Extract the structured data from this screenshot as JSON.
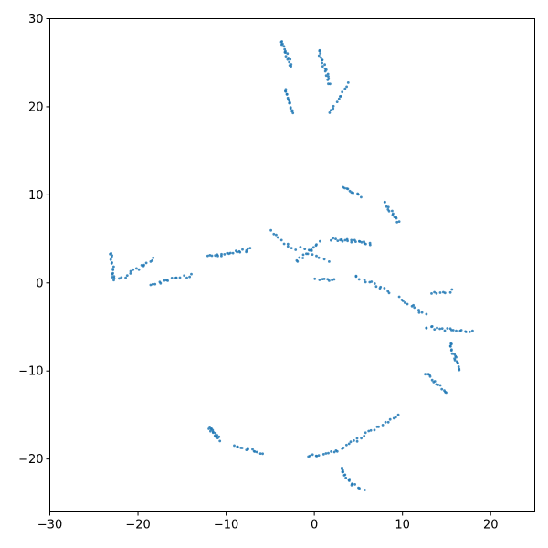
{
  "chart_data": {
    "type": "scatter",
    "title": "",
    "xlabel": "",
    "ylabel": "",
    "xlim": [
      -30,
      25
    ],
    "ylim": [
      -26,
      30
    ],
    "grid": false,
    "marker_color": "#1f77b4",
    "x_ticks": [
      -30,
      -20,
      -10,
      0,
      10,
      20
    ],
    "y_ticks": [
      -20,
      -10,
      0,
      10,
      20,
      30
    ],
    "x_tick_labels": [
      "−30",
      "−20",
      "−10",
      "0",
      "10",
      "20"
    ],
    "y_tick_labels": [
      "−20",
      "−10",
      "0",
      "10",
      "20",
      "30"
    ],
    "clusters": [
      {
        "from": [
          -3.8,
          27.4
        ],
        "to": [
          -2.6,
          24.6
        ],
        "n": 18
      },
      {
        "from": [
          -3.4,
          22.0
        ],
        "to": [
          -2.4,
          19.4
        ],
        "n": 16
      },
      {
        "from": [
          0.5,
          26.4
        ],
        "to": [
          1.8,
          22.5
        ],
        "n": 20
      },
      {
        "from": [
          1.8,
          19.2
        ],
        "to": [
          3.8,
          22.6
        ],
        "n": 12
      },
      {
        "from": [
          3.2,
          11.0
        ],
        "to": [
          5.2,
          9.8
        ],
        "n": 10
      },
      {
        "from": [
          8.0,
          9.2
        ],
        "to": [
          9.6,
          6.8
        ],
        "n": 14
      },
      {
        "from": [
          -12.0,
          3.0
        ],
        "to": [
          -7.2,
          3.8
        ],
        "n": 22
      },
      {
        "from": [
          -5.0,
          5.8
        ],
        "to": [
          -2.2,
          3.6
        ],
        "n": 10
      },
      {
        "from": [
          -2.0,
          2.4
        ],
        "to": [
          0.6,
          4.6
        ],
        "n": 14
      },
      {
        "from": [
          2.0,
          5.0
        ],
        "to": [
          6.4,
          4.5
        ],
        "n": 22
      },
      {
        "from": [
          0.2,
          0.3
        ],
        "to": [
          2.2,
          0.4
        ],
        "n": 8
      },
      {
        "from": [
          4.6,
          0.8
        ],
        "to": [
          8.6,
          -1.0
        ],
        "n": 14
      },
      {
        "from": [
          9.6,
          -1.6
        ],
        "to": [
          12.6,
          -3.6
        ],
        "n": 12
      },
      {
        "from": [
          13.4,
          -1.2
        ],
        "to": [
          15.6,
          -0.9
        ],
        "n": 8
      },
      {
        "from": [
          12.6,
          -5.0
        ],
        "to": [
          17.8,
          -5.6
        ],
        "n": 20
      },
      {
        "from": [
          15.4,
          -6.8
        ],
        "to": [
          16.4,
          -9.8
        ],
        "n": 18
      },
      {
        "from": [
          12.6,
          -10.2
        ],
        "to": [
          15.0,
          -12.4
        ],
        "n": 14
      },
      {
        "from": [
          -23.0,
          3.4
        ],
        "to": [
          -22.8,
          0.2
        ],
        "n": 16
      },
      {
        "from": [
          -22.0,
          0.4
        ],
        "to": [
          -18.2,
          2.8
        ],
        "n": 16
      },
      {
        "from": [
          -18.6,
          -0.2
        ],
        "to": [
          -14.0,
          0.9
        ],
        "n": 16
      },
      {
        "from": [
          -12.0,
          -16.4
        ],
        "to": [
          -10.8,
          -17.8
        ],
        "n": 16
      },
      {
        "from": [
          -9.0,
          -18.5
        ],
        "to": [
          -6.0,
          -19.3
        ],
        "n": 14
      },
      {
        "from": [
          -0.8,
          -19.8
        ],
        "to": [
          3.0,
          -18.9
        ],
        "n": 14
      },
      {
        "from": [
          3.2,
          -18.7
        ],
        "to": [
          9.6,
          -15.0
        ],
        "n": 22
      },
      {
        "from": [
          3.0,
          -21.0
        ],
        "to": [
          4.4,
          -23.0
        ],
        "n": 14
      },
      {
        "from": [
          4.6,
          -23.0
        ],
        "to": [
          5.6,
          -23.4
        ],
        "n": 4
      },
      {
        "from": [
          -1.6,
          4.0
        ],
        "to": [
          1.6,
          2.6
        ],
        "n": 8
      }
    ]
  }
}
